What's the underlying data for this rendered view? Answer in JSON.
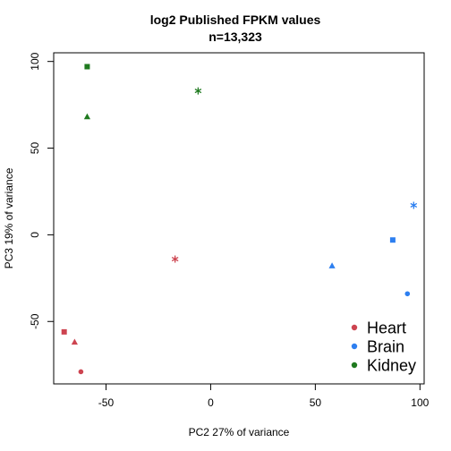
{
  "chart_data": {
    "type": "scatter",
    "title": "log2 Published FPKM values",
    "subtitle": "n=13,323",
    "xlabel": "PC2 27% of variance",
    "ylabel": "PC3 19% of variance",
    "xlim": [
      -75,
      102
    ],
    "ylim": [
      -86,
      105
    ],
    "xticks": [
      -50,
      0,
      50,
      100
    ],
    "yticks": [
      -50,
      0,
      50,
      100
    ],
    "xtick_labels": [
      "-50",
      "0",
      "50",
      "100"
    ],
    "ytick_labels": [
      "-50",
      "0",
      "50",
      "100"
    ],
    "grid": false,
    "legend_position": "bottom-right",
    "series": [
      {
        "name": "Heart",
        "color": "#cd4450",
        "points": [
          {
            "x": -62,
            "y": -79,
            "shape": "circle"
          },
          {
            "x": -70,
            "y": -56,
            "shape": "square"
          },
          {
            "x": -65,
            "y": -62,
            "shape": "triangle"
          },
          {
            "x": -17,
            "y": -14,
            "shape": "asterisk"
          }
        ]
      },
      {
        "name": "Brain",
        "color": "#2d7ff0",
        "points": [
          {
            "x": 94,
            "y": -34,
            "shape": "circle"
          },
          {
            "x": 87,
            "y": -3,
            "shape": "square"
          },
          {
            "x": 58,
            "y": -18,
            "shape": "triangle"
          },
          {
            "x": 97,
            "y": 17,
            "shape": "asterisk"
          }
        ]
      },
      {
        "name": "Kidney",
        "color": "#1f7a1f",
        "points": [
          {
            "x": -59,
            "y": 97,
            "shape": "square"
          },
          {
            "x": -59,
            "y": 68,
            "shape": "triangle"
          },
          {
            "x": -6,
            "y": 83,
            "shape": "asterisk"
          }
        ]
      }
    ]
  }
}
